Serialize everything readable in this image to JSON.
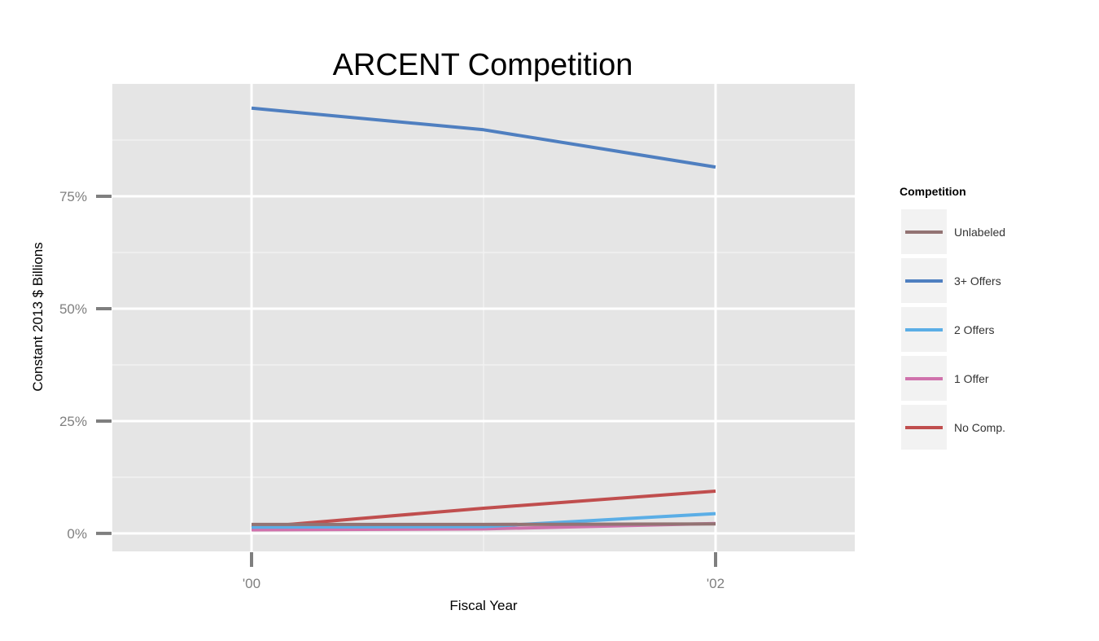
{
  "chart_data": {
    "type": "line",
    "title": "ARCENT Competition",
    "xlabel": "Fiscal Year",
    "ylabel": "Constant 2013 $ Billions",
    "x": [
      2000,
      2001,
      2002
    ],
    "x_ticks": [
      {
        "value": 2000,
        "label": "'00"
      },
      {
        "value": 2002,
        "label": "'02"
      }
    ],
    "xlim": [
      1999.4,
      2002.6
    ],
    "y_ticks": [
      {
        "value": 0,
        "label": "0%"
      },
      {
        "value": 25,
        "label": "25%"
      },
      {
        "value": 50,
        "label": "50%"
      },
      {
        "value": 75,
        "label": "75%"
      }
    ],
    "ylim": [
      -4,
      100
    ],
    "grid": true,
    "legend": {
      "title": "Competition",
      "position": "right"
    },
    "series": [
      {
        "name": "Unlabeled",
        "color": "#937373",
        "values": [
          2.0,
          2.0,
          2.1
        ]
      },
      {
        "name": "3+ Offers",
        "color": "#4f7fc0",
        "values": [
          94.6,
          89.8,
          81.5
        ]
      },
      {
        "name": "2 Offers",
        "color": "#5baee6",
        "values": [
          1.4,
          1.5,
          4.4
        ]
      },
      {
        "name": "1 Offer",
        "color": "#cf72ac",
        "values": [
          0.8,
          1.0,
          2.2
        ]
      },
      {
        "name": "No Comp.",
        "color": "#c04e4e",
        "values": [
          1.3,
          5.6,
          9.4
        ]
      }
    ]
  }
}
